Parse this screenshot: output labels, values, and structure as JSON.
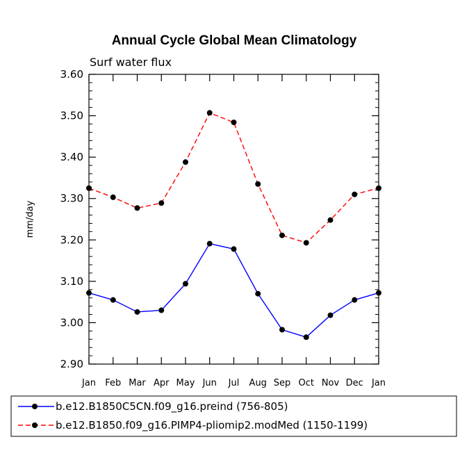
{
  "chart_data": {
    "type": "line",
    "title": "Annual Cycle Global Mean Climatology",
    "subtitle": "Surf water flux",
    "xlabel": "",
    "ylabel": "mm/day",
    "ylim": [
      2.9,
      3.6
    ],
    "yticks": [
      "2.90",
      "3.00",
      "3.10",
      "3.20",
      "3.30",
      "3.40",
      "3.50",
      "3.60"
    ],
    "categories": [
      "Jan",
      "Feb",
      "Mar",
      "Apr",
      "May",
      "Jun",
      "Jul",
      "Aug",
      "Sep",
      "Oct",
      "Nov",
      "Dec",
      "Jan"
    ],
    "series": [
      {
        "name": "b.e12.B1850C5CN.f09_g16.preind (756-805)",
        "color": "#0000ff",
        "dash": "solid",
        "values": [
          3.072,
          3.055,
          3.026,
          3.03,
          3.094,
          3.191,
          3.178,
          3.07,
          2.983,
          2.965,
          3.018,
          3.055,
          3.072
        ]
      },
      {
        "name": "b.e12.B1850.f09_g16.PIMP4-pliomip2.modMed (1150-1199)",
        "color": "#ff0000",
        "dash": "dashed",
        "values": [
          3.325,
          3.303,
          3.277,
          3.289,
          3.388,
          3.507,
          3.484,
          3.335,
          3.211,
          3.193,
          3.248,
          3.31,
          3.325
        ]
      }
    ],
    "legend": "bottom",
    "grid": false
  }
}
